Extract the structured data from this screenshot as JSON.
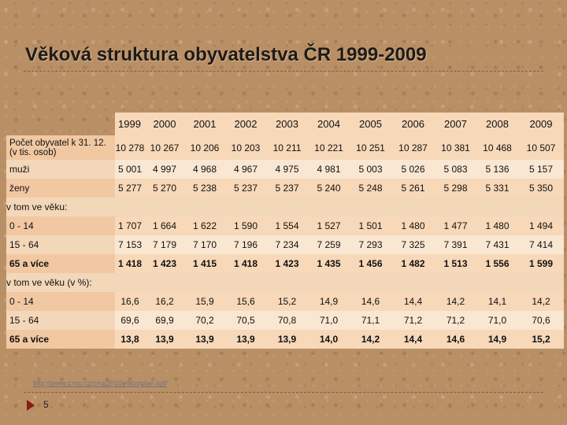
{
  "title": "Věková struktura obyvatelstva ČR 1999-2009",
  "years": [
    "1999",
    "2000",
    "2001",
    "2002",
    "2003",
    "2004",
    "2005",
    "2006",
    "2007",
    "2008",
    "2009"
  ],
  "rows": {
    "total": {
      "label_line1": "Počet obyvatel k 31. 12.",
      "label_line2": "(v tis. osob)",
      "values": [
        "10 278",
        "10 267",
        "10 206",
        "10 203",
        "10 211",
        "10 221",
        "10 251",
        "10 287",
        "10 381",
        "10 468",
        "10 507"
      ]
    },
    "men": {
      "label": "muži",
      "values": [
        "5 001",
        "4 997",
        "4 968",
        "4 967",
        "4 975",
        "4 981",
        "5 003",
        "5 026",
        "5 083",
        "5 136",
        "5 157"
      ]
    },
    "women": {
      "label": "ženy",
      "values": [
        "5 277",
        "5 270",
        "5 238",
        "5 237",
        "5 237",
        "5 240",
        "5 248",
        "5 261",
        "5 298",
        "5 331",
        "5 350"
      ]
    },
    "section_abs": "v tom ve věku:",
    "abs_0_14": {
      "label": "0 - 14",
      "values": [
        "1 707",
        "1 664",
        "1 622",
        "1 590",
        "1 554",
        "1 527",
        "1 501",
        "1 480",
        "1 477",
        "1 480",
        "1 494"
      ]
    },
    "abs_15_64": {
      "label": "15 - 64",
      "values": [
        "7 153",
        "7 179",
        "7 170",
        "7 196",
        "7 234",
        "7 259",
        "7 293",
        "7 325",
        "7 391",
        "7 431",
        "7 414"
      ]
    },
    "abs_65": {
      "label": "65 a více",
      "values": [
        "1 418",
        "1 423",
        "1 415",
        "1 418",
        "1 423",
        "1 435",
        "1 456",
        "1 482",
        "1 513",
        "1 556",
        "1 599"
      ]
    },
    "section_pct": "v tom ve věku (v %):",
    "pct_0_14": {
      "label": "0 - 14",
      "values": [
        "16,6",
        "16,2",
        "15,9",
        "15,6",
        "15,2",
        "14,9",
        "14,6",
        "14,4",
        "14,2",
        "14,1",
        "14,2"
      ]
    },
    "pct_15_64": {
      "label": "15 - 64",
      "values": [
        "69,6",
        "69,9",
        "70,2",
        "70,5",
        "70,8",
        "71,0",
        "71,1",
        "71,2",
        "71,2",
        "71,0",
        "70,6"
      ]
    },
    "pct_65": {
      "label": "65 a více",
      "values": [
        "13,8",
        "13,9",
        "13,9",
        "13,9",
        "13,9",
        "14,0",
        "14,2",
        "14,4",
        "14,6",
        "14,9",
        "15,2"
      ]
    }
  },
  "footer": {
    "source": "http://www.czso.cz/csu/2010edicniplan.nsf/",
    "page_number": "5"
  },
  "colors": {
    "background": "#b98f66",
    "table_band": "#f7d8b8",
    "table_plain": "#f9e7d2",
    "arrow": "#8c1a16"
  }
}
